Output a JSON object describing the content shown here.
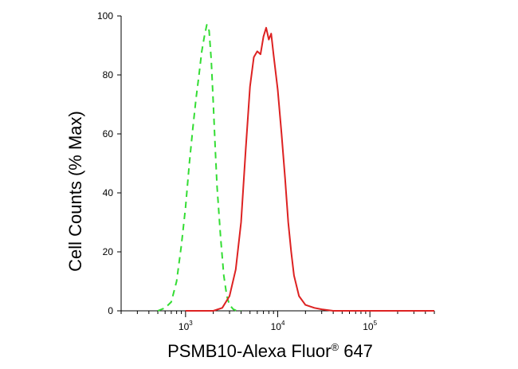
{
  "chart_data": {
    "type": "line",
    "title": "",
    "xlabel_main": "PSMB10-Alexa Fluor",
    "xlabel_reg": "®",
    "xlabel_tail": " 647",
    "ylabel": "Cell Counts (% Max)",
    "xscale": "log",
    "xlim": [
      200,
      500000
    ],
    "ylim": [
      0,
      100
    ],
    "grid": false,
    "legend": "none",
    "yticks": [
      0,
      20,
      40,
      60,
      80,
      100
    ],
    "xticks": [
      {
        "value": 1000,
        "base": "10",
        "exp": "3"
      },
      {
        "value": 10000,
        "base": "10",
        "exp": "4"
      },
      {
        "value": 100000,
        "base": "10",
        "exp": "5"
      }
    ],
    "series": [
      {
        "color": "#33dd33",
        "dash": true,
        "x": [
          500,
          600,
          700,
          800,
          900,
          1000,
          1100,
          1200,
          1300,
          1400,
          1500,
          1600,
          1700,
          1800,
          1900,
          2000,
          2100,
          2200,
          2400,
          2600,
          2800,
          3000,
          3300,
          3600,
          4000
        ],
        "y": [
          0,
          1,
          3,
          10,
          22,
          35,
          50,
          62,
          72,
          80,
          88,
          93,
          97,
          95,
          85,
          70,
          55,
          42,
          25,
          12,
          5,
          2,
          0.5,
          0,
          0
        ]
      },
      {
        "color": "#dd2222",
        "dash": false,
        "x": [
          1000,
          2000,
          2500,
          3000,
          3500,
          4000,
          4500,
          5000,
          5500,
          6000,
          6500,
          7000,
          7500,
          8000,
          8500,
          9000,
          10000,
          11000,
          12000,
          13000,
          14000,
          15000,
          17000,
          20000,
          25000,
          30000,
          40000,
          60000,
          100000,
          500000
        ],
        "y": [
          0,
          0,
          1,
          5,
          14,
          30,
          55,
          76,
          86,
          88,
          87,
          93,
          96,
          92,
          94,
          87,
          75,
          60,
          45,
          30,
          20,
          12,
          5,
          2,
          1,
          0.5,
          0,
          0,
          0,
          0
        ]
      }
    ]
  }
}
